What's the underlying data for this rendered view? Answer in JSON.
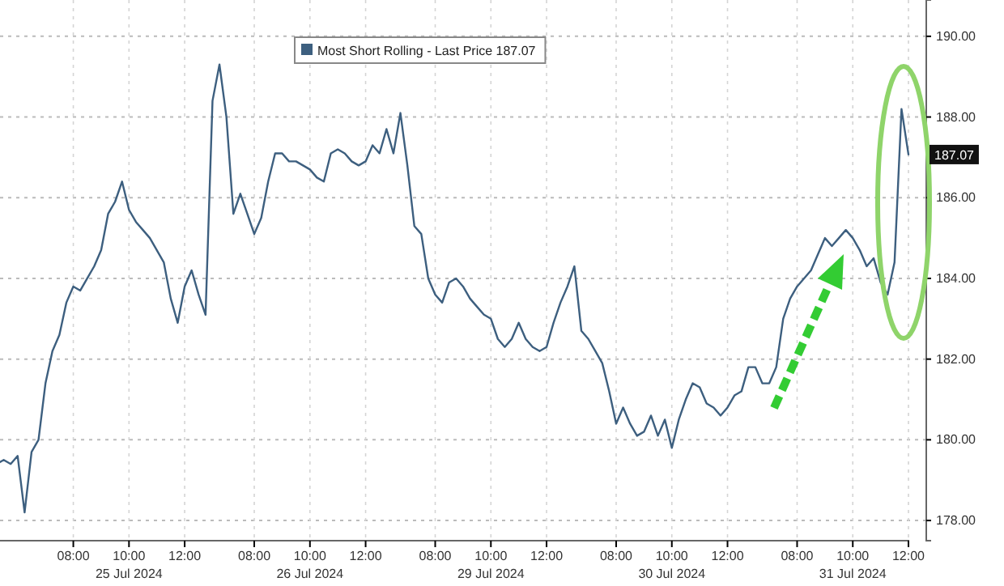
{
  "chart_data": {
    "type": "line",
    "categories": [
      null,
      null,
      null,
      null,
      null,
      null,
      null,
      null,
      null,
      null,
      null,
      "08:00",
      null,
      null,
      null,
      null,
      null,
      null,
      null,
      "10:00\n25 Jul 2024",
      null,
      null,
      null,
      null,
      null,
      null,
      null,
      "12:00",
      null,
      null,
      null,
      null,
      null,
      null,
      null,
      null,
      null,
      "08:00",
      null,
      null,
      null,
      null,
      null,
      null,
      null,
      "10:00\n26 Jul 2024",
      null,
      null,
      null,
      null,
      null,
      null,
      null,
      "12:00",
      null,
      null,
      null,
      null,
      null,
      null,
      null,
      null,
      null,
      "08:00",
      null,
      null,
      null,
      null,
      null,
      null,
      null,
      "10:00\n29 Jul 2024",
      null,
      null,
      null,
      null,
      null,
      null,
      null,
      "12:00",
      null,
      null,
      null,
      null,
      null,
      null,
      null,
      null,
      null,
      "08:00",
      null,
      null,
      null,
      null,
      null,
      null,
      null,
      "10:00\n30 Jul 2024",
      null,
      null,
      null,
      null,
      null,
      null,
      null,
      "12:00",
      null,
      null,
      null,
      null,
      null,
      null,
      null,
      null,
      null,
      "08:00",
      null,
      null,
      null,
      null,
      null,
      null,
      null,
      "10:00\n31 Jul 2024",
      null,
      null,
      null,
      null,
      null,
      null,
      null,
      "12:00"
    ],
    "series": [
      {
        "name": "Most Short Rolling - Last Price 187.07",
        "color": "#3d5f7f",
        "values": [
          179.4,
          179.5,
          179.4,
          179.6,
          178.2,
          179.7,
          180.0,
          181.4,
          182.2,
          182.6,
          183.4,
          183.8,
          183.7,
          184.0,
          184.3,
          184.7,
          185.6,
          185.9,
          186.4,
          185.7,
          185.4,
          185.2,
          185.0,
          184.7,
          184.4,
          183.5,
          182.9,
          183.8,
          184.2,
          183.6,
          183.1,
          188.4,
          189.3,
          188.0,
          185.6,
          186.1,
          185.6,
          185.1,
          185.5,
          186.4,
          187.1,
          187.1,
          186.9,
          186.9,
          186.8,
          186.7,
          186.5,
          186.4,
          187.1,
          187.2,
          187.1,
          186.9,
          186.8,
          186.9,
          187.3,
          187.1,
          187.7,
          187.1,
          188.1,
          186.8,
          185.3,
          185.1,
          184.0,
          183.6,
          183.4,
          183.9,
          184.0,
          183.8,
          183.5,
          183.3,
          183.1,
          183.0,
          182.5,
          182.3,
          182.5,
          182.9,
          182.5,
          182.3,
          182.2,
          182.3,
          182.9,
          183.4,
          183.8,
          184.3,
          182.7,
          182.5,
          182.2,
          181.9,
          181.2,
          180.4,
          180.8,
          180.4,
          180.1,
          180.2,
          180.6,
          180.1,
          180.5,
          179.8,
          180.5,
          181.0,
          181.4,
          181.3,
          180.9,
          180.8,
          180.6,
          180.8,
          181.1,
          181.2,
          181.8,
          181.8,
          181.4,
          181.4,
          181.8,
          183.0,
          183.5,
          183.8,
          184.0,
          184.2,
          184.6,
          185.0,
          184.8,
          185.0,
          185.2,
          185.0,
          184.7,
          184.3,
          184.5,
          183.9,
          183.6,
          184.4,
          188.2,
          187.07
        ]
      }
    ],
    "ylim": [
      177.5,
      190.9
    ],
    "yticks": [
      {
        "value": 178,
        "label": "178.00"
      },
      {
        "value": 180,
        "label": "180.00"
      },
      {
        "value": 182,
        "label": "182.00"
      },
      {
        "value": 184,
        "label": "184.00"
      },
      {
        "value": 186,
        "label": "186.00"
      },
      {
        "value": 188,
        "label": "188.00"
      },
      {
        "value": 190,
        "label": "190.00"
      }
    ],
    "grid": true,
    "legend": "top",
    "annotations": [
      {
        "text": "187.07",
        "y": 187.07
      }
    ]
  }
}
